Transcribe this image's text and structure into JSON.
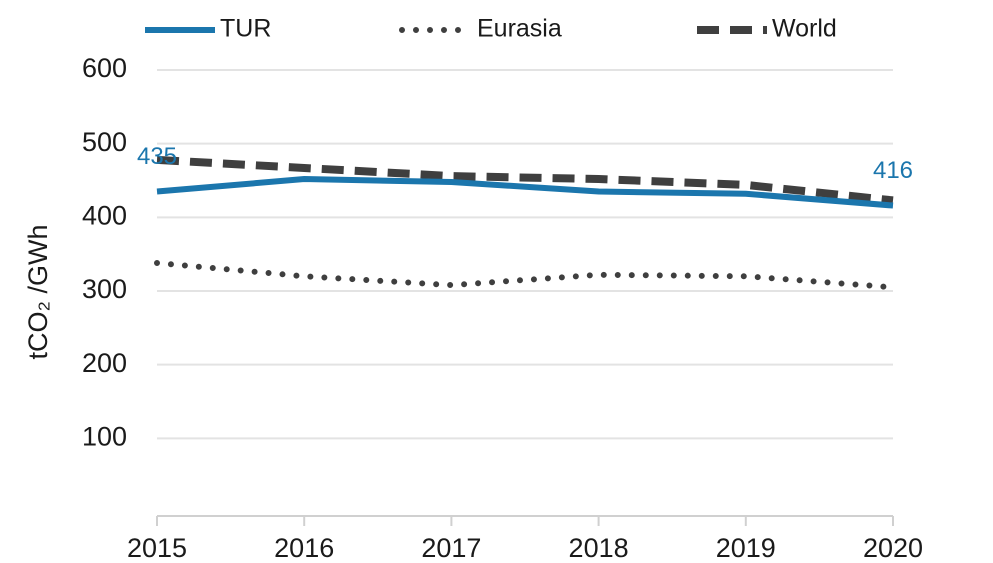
{
  "chart_data": {
    "type": "line",
    "y_label": "tCO₂ /GWh",
    "x": [
      2015,
      2016,
      2017,
      2018,
      2019,
      2020
    ],
    "xlim": [
      2015,
      2020
    ],
    "xticks": [
      2015,
      2016,
      2017,
      2018,
      2019,
      2020
    ],
    "ylim": [
      0,
      600
    ],
    "yticks": [
      100,
      200,
      300,
      400,
      500,
      600
    ],
    "grid": true,
    "legend": "top",
    "series": [
      {
        "name": "TUR",
        "color": "#1b76ad",
        "dash": "solid",
        "values": [
          435,
          452,
          448,
          435,
          432,
          416
        ],
        "value_labels": [
          "435",
          null,
          null,
          null,
          null,
          "416"
        ]
      },
      {
        "name": "Eurasia",
        "color": "#3f3f3f",
        "dash": "dotted",
        "values": [
          338,
          320,
          308,
          322,
          320,
          305
        ]
      },
      {
        "name": "World",
        "color": "#3f3f3f",
        "dash": "dashed",
        "values": [
          478,
          467,
          456,
          452,
          444,
          423
        ]
      }
    ]
  }
}
